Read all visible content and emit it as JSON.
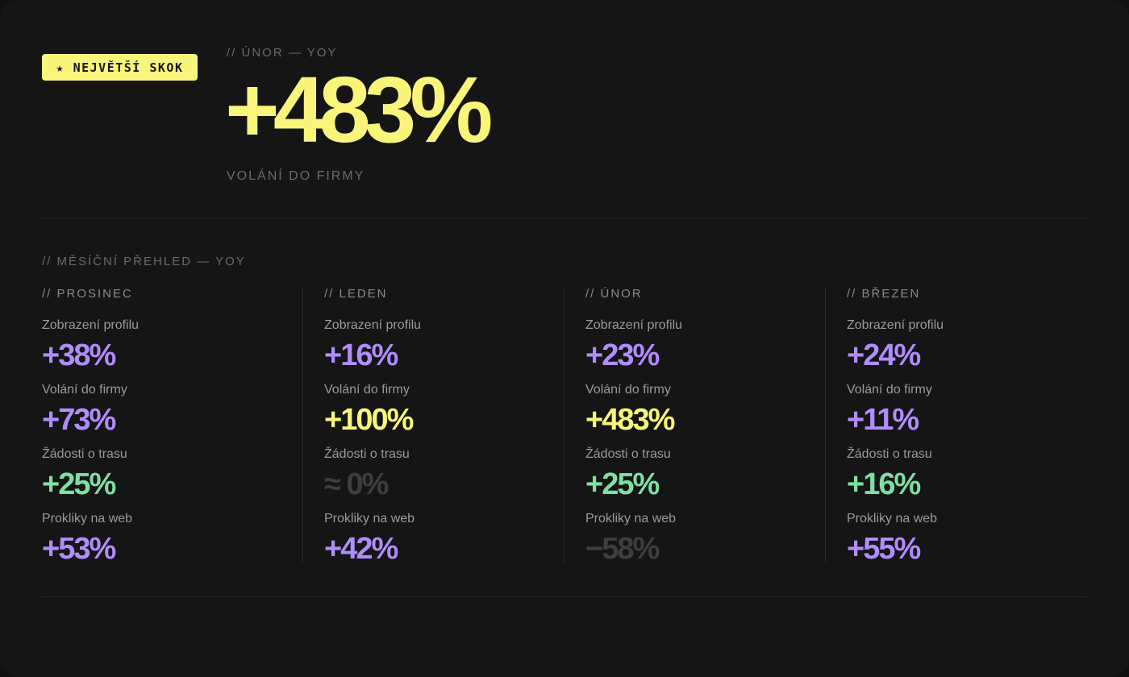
{
  "colors": {
    "background": "#151515",
    "yellow": "#f8f57a",
    "purple": "#b18cff",
    "green": "#7ee0a0",
    "muted": "#3e3e3e"
  },
  "badge": {
    "label": "★ NEJVĚTŠÍ SKOK"
  },
  "hero": {
    "kicker": "// ÚNOR — YOY",
    "value": "+483%",
    "label": "VOLÁNÍ DO FIRMY"
  },
  "section": {
    "title": "// MĚSÍČNÍ PŘEHLED — YOY"
  },
  "months": [
    {
      "title": "// PROSINEC",
      "metrics": [
        {
          "label": "Zobrazení profilu",
          "value": "+38%",
          "color": "#b18cff"
        },
        {
          "label": "Volání do firmy",
          "value": "+73%",
          "color": "#b18cff"
        },
        {
          "label": "Žádosti o trasu",
          "value": "+25%",
          "color": "#7ee0a0"
        },
        {
          "label": "Prokliky na web",
          "value": "+53%",
          "color": "#b18cff"
        }
      ]
    },
    {
      "title": "// LEDEN",
      "metrics": [
        {
          "label": "Zobrazení profilu",
          "value": "+16%",
          "color": "#b18cff"
        },
        {
          "label": "Volání do firmy",
          "value": "+100%",
          "color": "#f8f57a"
        },
        {
          "label": "Žádosti o trasu",
          "value": "≈ 0%",
          "color": "#3e3e3e"
        },
        {
          "label": "Prokliky na web",
          "value": "+42%",
          "color": "#b18cff"
        }
      ]
    },
    {
      "title": "// ÚNOR",
      "metrics": [
        {
          "label": "Zobrazení profilu",
          "value": "+23%",
          "color": "#b18cff"
        },
        {
          "label": "Volání do firmy",
          "value": "+483%",
          "color": "#f8f57a"
        },
        {
          "label": "Žádosti o trasu",
          "value": "+25%",
          "color": "#7ee0a0"
        },
        {
          "label": "Prokliky na web",
          "value": "−58%",
          "color": "#3e3e3e"
        }
      ]
    },
    {
      "title": "// BŘEZEN",
      "metrics": [
        {
          "label": "Zobrazení profilu",
          "value": "+24%",
          "color": "#b18cff"
        },
        {
          "label": "Volání do firmy",
          "value": "+11%",
          "color": "#b18cff"
        },
        {
          "label": "Žádosti o trasu",
          "value": "+16%",
          "color": "#7ee0a0"
        },
        {
          "label": "Prokliky na web",
          "value": "+55%",
          "color": "#b18cff"
        }
      ]
    }
  ]
}
